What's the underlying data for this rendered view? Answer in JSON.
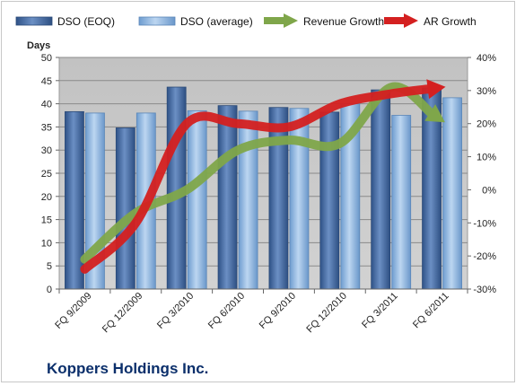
{
  "chart_data": {
    "type": "bar",
    "title": "",
    "company": "Koppers Holdings Inc.",
    "ylabel": "Days",
    "categories": [
      "FQ 9/2009",
      "FQ 12/2009",
      "FQ 3/2010",
      "FQ 6/2010",
      "FQ 9/2010",
      "FQ 12/2010",
      "FQ 3/2011",
      "FQ 6/2011"
    ],
    "ylim": [
      0,
      50
    ],
    "y_ticks": [
      "0",
      "5",
      "10",
      "15",
      "20",
      "25",
      "30",
      "35",
      "40",
      "45",
      "50"
    ],
    "y2lim": [
      -30,
      40
    ],
    "y2_ticks": [
      "-30%",
      "-20%",
      "-10%",
      "0%",
      "10%",
      "20%",
      "30%",
      "40%"
    ],
    "series": [
      {
        "name": "DSO (EOQ)",
        "type": "bar",
        "axis": "left",
        "color": "#4a6fa5",
        "values": [
          38.3,
          34.8,
          43.6,
          39.6,
          39.2,
          38.2,
          43.0,
          43.4
        ]
      },
      {
        "name": "DSO (average)",
        "type": "bar",
        "axis": "left",
        "color": "#8fb6e2",
        "values": [
          38.0,
          38.0,
          38.5,
          38.4,
          39.0,
          40.0,
          37.5,
          41.3
        ]
      },
      {
        "name": "Revenue Growth",
        "type": "line",
        "axis": "right",
        "color": "#7fa64a",
        "unit": "%",
        "values": [
          -21,
          -7,
          0,
          12,
          15,
          14,
          31,
          21
        ]
      },
      {
        "name": "AR Growth",
        "type": "line",
        "axis": "right",
        "color": "#d42020",
        "unit": "%",
        "values": [
          -24,
          -10,
          20,
          20,
          19,
          26,
          29,
          31
        ]
      }
    ],
    "grid": true,
    "legend_position": "top"
  }
}
